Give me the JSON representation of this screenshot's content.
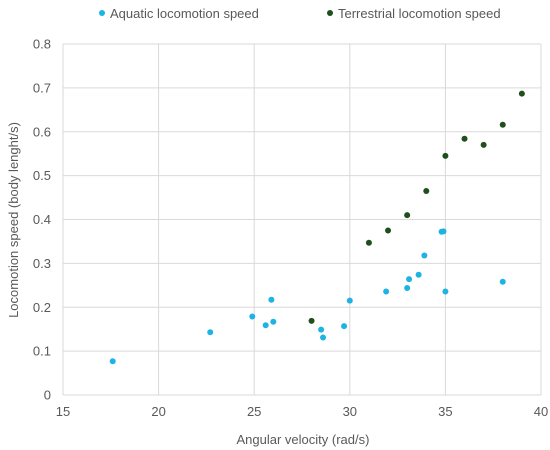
{
  "chart_data": {
    "type": "scatter",
    "title": "",
    "xlabel": "Angular velocity (rad/s)",
    "ylabel": "Locomotion  speed (body lenght/s)",
    "xlim": [
      15,
      40
    ],
    "ylim": [
      0,
      0.8
    ],
    "x_ticks": [
      "15",
      "20",
      "25",
      "30",
      "35",
      "40"
    ],
    "y_ticks": [
      "0",
      "0.1",
      "0.2",
      "0.3",
      "0.4",
      "0.5",
      "0.6",
      "0.7",
      "0.8"
    ],
    "grid": "vertical and horizontal",
    "legend_position": "top",
    "series": [
      {
        "name": "Aquatic locomotion speed",
        "color": "#1fb3e5",
        "points": [
          [
            17.6,
            0.077
          ],
          [
            22.7,
            0.143
          ],
          [
            24.9,
            0.179
          ],
          [
            25.6,
            0.159
          ],
          [
            25.9,
            0.217
          ],
          [
            26.0,
            0.167
          ],
          [
            28.5,
            0.149
          ],
          [
            28.6,
            0.131
          ],
          [
            29.7,
            0.157
          ],
          [
            30.0,
            0.215
          ],
          [
            31.9,
            0.236
          ],
          [
            33.0,
            0.244
          ],
          [
            33.1,
            0.264
          ],
          [
            33.6,
            0.274
          ],
          [
            33.9,
            0.318
          ],
          [
            34.8,
            0.372
          ],
          [
            34.9,
            0.373
          ],
          [
            35.0,
            0.236
          ],
          [
            38.0,
            0.258
          ]
        ]
      },
      {
        "name": "Terrestrial locomotion speed",
        "color": "#1e4f1c",
        "points": [
          [
            28.0,
            0.169
          ],
          [
            31.0,
            0.347
          ],
          [
            32.0,
            0.375
          ],
          [
            33.0,
            0.41
          ],
          [
            34.0,
            0.465
          ],
          [
            35.0,
            0.545
          ],
          [
            36.0,
            0.584
          ],
          [
            37.0,
            0.57
          ],
          [
            38.0,
            0.616
          ],
          [
            39.0,
            0.687
          ]
        ]
      }
    ]
  }
}
